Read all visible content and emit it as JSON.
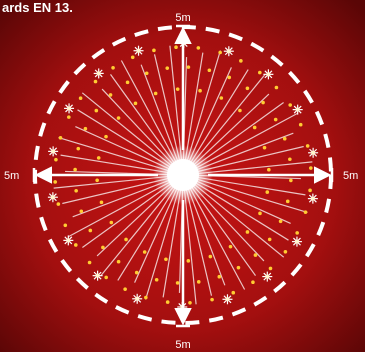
{
  "caption_fragment": "ards EN 13.",
  "distance_labels": {
    "top": "5m",
    "left": "5m",
    "right": "5m",
    "bottom": "5m"
  },
  "colors": {
    "background_center": "#c81414",
    "background_edge": "#5a0606",
    "line": "#ffffff",
    "dot": "#ffcc33",
    "star": "#ffffff"
  }
}
